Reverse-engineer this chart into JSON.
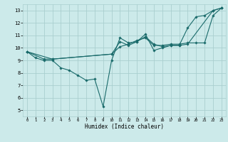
{
  "background_color": "#cceaea",
  "grid_color": "#aacfcf",
  "line_color": "#1a6b6b",
  "marker_color": "#1a6b6b",
  "xlabel": "Humidex (Indice chaleur)",
  "xlim": [
    -0.5,
    23.5
  ],
  "ylim": [
    4.5,
    13.5
  ],
  "yticks": [
    5,
    6,
    7,
    8,
    9,
    10,
    11,
    12,
    13
  ],
  "xticks": [
    0,
    1,
    2,
    3,
    4,
    5,
    6,
    7,
    8,
    9,
    10,
    11,
    12,
    13,
    14,
    15,
    16,
    17,
    18,
    19,
    20,
    21,
    22,
    23
  ],
  "series1": [
    [
      0,
      9.7
    ],
    [
      1,
      9.2
    ],
    [
      2,
      9.0
    ],
    [
      3,
      9.0
    ],
    [
      4,
      8.4
    ],
    [
      5,
      8.2
    ],
    [
      6,
      7.8
    ],
    [
      7,
      7.4
    ],
    [
      8,
      7.5
    ],
    [
      9,
      5.3
    ],
    [
      10,
      9.0
    ],
    [
      11,
      10.8
    ],
    [
      12,
      10.4
    ],
    [
      13,
      10.5
    ],
    [
      14,
      11.1
    ],
    [
      15,
      9.8
    ],
    [
      16,
      10.0
    ],
    [
      17,
      10.2
    ],
    [
      18,
      10.2
    ],
    [
      19,
      11.6
    ],
    [
      20,
      12.5
    ],
    [
      21,
      12.6
    ],
    [
      22,
      13.0
    ],
    [
      23,
      13.2
    ]
  ],
  "series2": [
    [
      0,
      9.7
    ],
    [
      2,
      9.1
    ],
    [
      3,
      9.1
    ],
    [
      10,
      9.5
    ],
    [
      11,
      10.1
    ],
    [
      12,
      10.3
    ],
    [
      13,
      10.6
    ],
    [
      14,
      10.8
    ],
    [
      15,
      10.2
    ],
    [
      16,
      10.2
    ],
    [
      17,
      10.3
    ],
    [
      18,
      10.3
    ],
    [
      19,
      10.4
    ],
    [
      20,
      10.4
    ],
    [
      21,
      10.4
    ],
    [
      22,
      12.6
    ],
    [
      23,
      13.2
    ]
  ],
  "series3": [
    [
      0,
      9.7
    ],
    [
      3,
      9.1
    ],
    [
      10,
      9.5
    ],
    [
      11,
      10.5
    ],
    [
      12,
      10.2
    ],
    [
      13,
      10.5
    ],
    [
      14,
      10.9
    ],
    [
      15,
      10.3
    ],
    [
      16,
      10.1
    ],
    [
      17,
      10.2
    ],
    [
      18,
      10.2
    ],
    [
      19,
      10.3
    ],
    [
      22,
      13.0
    ],
    [
      23,
      13.2
    ]
  ]
}
